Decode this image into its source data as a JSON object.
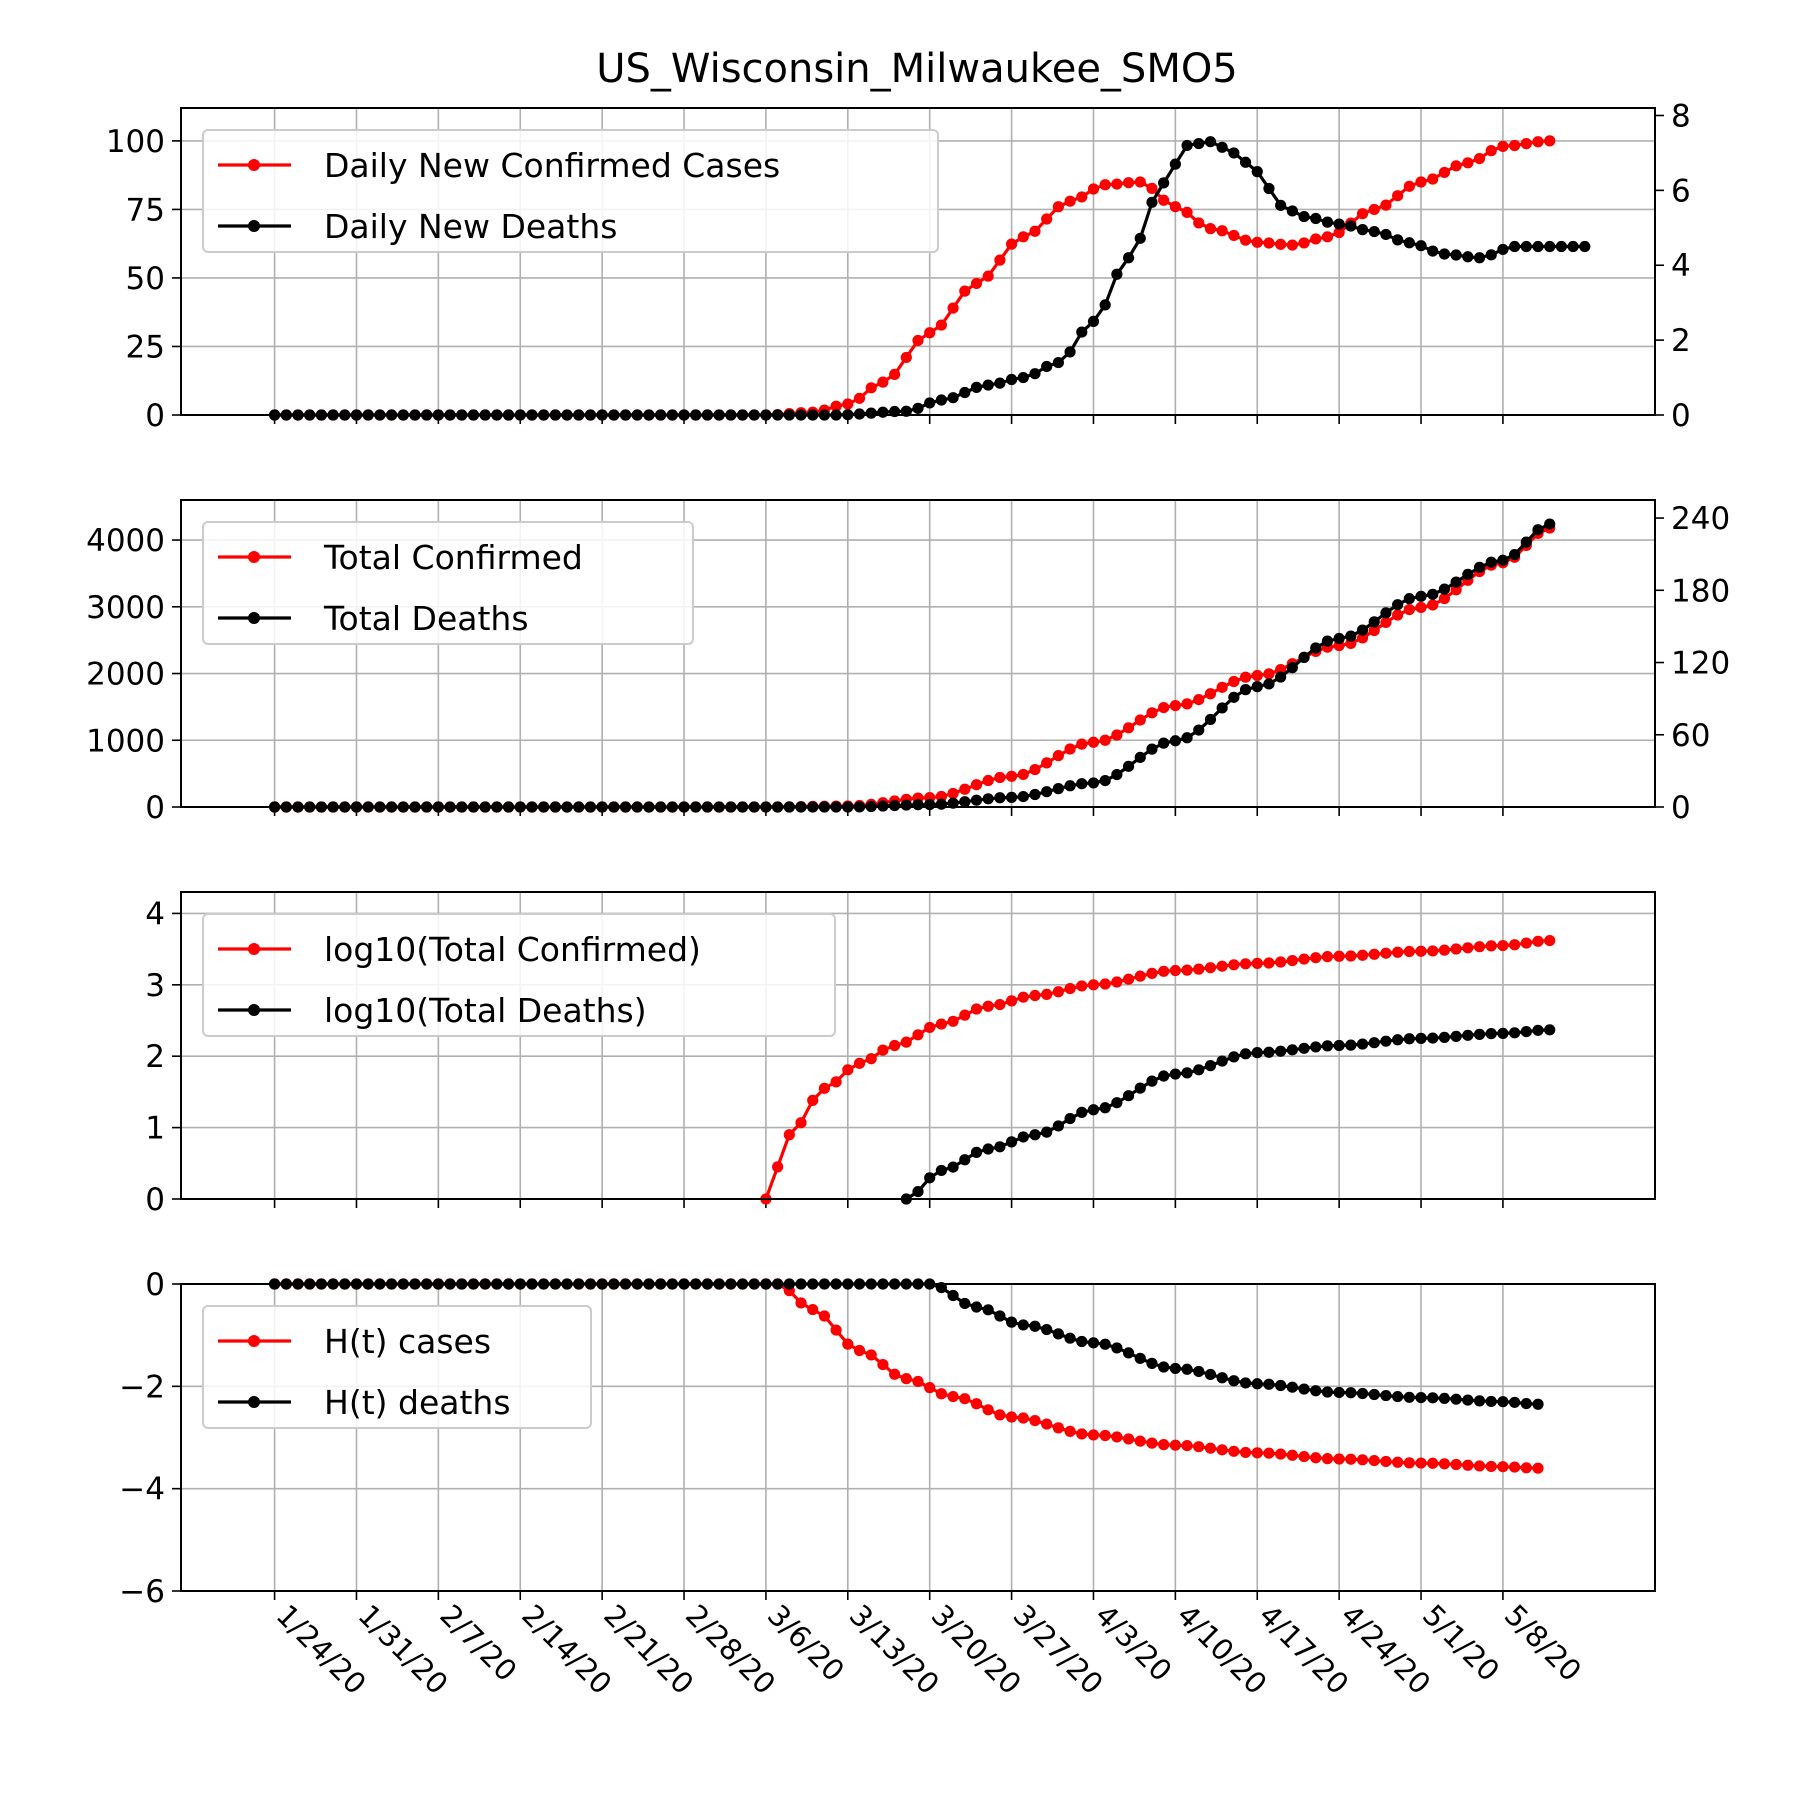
{
  "figure": {
    "title": "US_Wisconsin_Milwaukee_SMO5"
  },
  "colors": {
    "cases": "#ff0000",
    "deaths": "#000000",
    "grid": "#b0b0b0",
    "legend_border": "#cccccc"
  },
  "date_ticks": [
    "1/24/20",
    "1/31/20",
    "2/7/20",
    "2/14/20",
    "2/21/20",
    "2/28/20",
    "3/6/20",
    "3/13/20",
    "3/20/20",
    "3/27/20",
    "4/3/20",
    "4/10/20",
    "4/17/20",
    "4/24/20",
    "5/1/20",
    "5/8/20"
  ],
  "chart_data": [
    {
      "type": "line",
      "title": "US_Wisconsin_Milwaukee_SMO5",
      "x_start": "1/24/20",
      "x_end": "5/12/20",
      "xlim": [
        "1/16/20",
        "5/21/20"
      ],
      "left_axis": {
        "ylim": [
          0,
          112
        ],
        "ticks": [
          "0",
          "25",
          "50",
          "75",
          "100"
        ]
      },
      "right_axis": {
        "ylim": [
          0,
          8.2
        ],
        "ticks": [
          "0",
          "2",
          "4",
          "6",
          "8"
        ]
      },
      "legend": {
        "position": "top-left"
      },
      "grid": true,
      "series": [
        {
          "name": "Daily New Confirmed Cases",
          "axis": "left",
          "knots": [
            [
              "1/24/20",
              0
            ],
            [
              "3/6/20",
              0
            ],
            [
              "3/10/20",
              1
            ],
            [
              "3/13/20",
              4
            ],
            [
              "3/16/20",
              12
            ],
            [
              "3/20/20",
              30
            ],
            [
              "3/24/20",
              48
            ],
            [
              "3/28/20",
              65
            ],
            [
              "4/1/20",
              78
            ],
            [
              "4/4/20",
              84
            ],
            [
              "4/7/20",
              85
            ],
            [
              "4/10/20",
              76
            ],
            [
              "4/13/20",
              68
            ],
            [
              "4/17/20",
              63
            ],
            [
              "4/20/20",
              62
            ],
            [
              "4/23/20",
              65
            ],
            [
              "4/27/20",
              75
            ],
            [
              "5/1/20",
              85
            ],
            [
              "5/5/20",
              92
            ],
            [
              "5/8/20",
              98
            ],
            [
              "5/12/20",
              100
            ]
          ]
        },
        {
          "name": "Daily New Deaths",
          "axis": "right",
          "knots": [
            [
              "1/24/20",
              0
            ],
            [
              "3/12/20",
              0
            ],
            [
              "3/18/20",
              0.1
            ],
            [
              "3/21/20",
              0.4
            ],
            [
              "3/25/20",
              0.8
            ],
            [
              "3/28/20",
              1
            ],
            [
              "3/31/20",
              1.4
            ],
            [
              "4/3/20",
              2.5
            ],
            [
              "4/6/20",
              4.2
            ],
            [
              "4/9/20",
              6.2
            ],
            [
              "4/11/20",
              7.2
            ],
            [
              "4/13/20",
              7.3
            ],
            [
              "4/15/20",
              7
            ],
            [
              "4/17/20",
              6.5
            ],
            [
              "4/19/20",
              5.6
            ],
            [
              "4/21/20",
              5.3
            ],
            [
              "4/24/20",
              5.1
            ],
            [
              "4/27/20",
              4.9
            ],
            [
              "4/30/20",
              4.6
            ],
            [
              "5/3/20",
              4.3
            ],
            [
              "5/6/20",
              4.2
            ],
            [
              "5/9/20",
              4.5
            ],
            [
              "5/12/20",
              4.5
            ],
            [
              "5/15/20",
              4.5
            ]
          ]
        }
      ]
    },
    {
      "type": "line",
      "x_start": "1/24/20",
      "x_end": "5/12/20",
      "xlim": [
        "1/16/20",
        "5/21/20"
      ],
      "left_axis": {
        "ylim": [
          0,
          4600
        ],
        "ticks": [
          "0",
          "1000",
          "2000",
          "3000",
          "4000"
        ]
      },
      "right_axis": {
        "ylim": [
          0,
          255
        ],
        "ticks": [
          "0",
          "60",
          "120",
          "180",
          "240"
        ]
      },
      "legend": {
        "position": "top-left"
      },
      "grid": true,
      "series": [
        {
          "name": "Total Confirmed",
          "axis": "left",
          "knots": [
            [
              "1/24/20",
              0
            ],
            [
              "3/6/20",
              0
            ],
            [
              "3/13/20",
              15
            ],
            [
              "3/20/20",
              140
            ],
            [
              "3/27/20",
              460
            ],
            [
              "4/3/20",
              970
            ],
            [
              "4/10/20",
              1520
            ],
            [
              "4/17/20",
              1970
            ],
            [
              "4/24/20",
              2420
            ],
            [
              "5/1/20",
              2990
            ],
            [
              "5/8/20",
              3660
            ],
            [
              "5/12/20",
              4180
            ]
          ]
        },
        {
          "name": "Total Deaths",
          "axis": "right",
          "knots": [
            [
              "1/24/20",
              0
            ],
            [
              "3/13/20",
              0
            ],
            [
              "3/20/20",
              2
            ],
            [
              "3/27/20",
              8
            ],
            [
              "4/3/20",
              20
            ],
            [
              "4/10/20",
              55
            ],
            [
              "4/17/20",
              100
            ],
            [
              "4/24/20",
              140
            ],
            [
              "5/1/20",
              175
            ],
            [
              "5/8/20",
              205
            ],
            [
              "5/12/20",
              235
            ]
          ]
        }
      ]
    },
    {
      "type": "line",
      "x_start": "1/24/20",
      "x_end": "5/12/20",
      "xlim": [
        "1/16/20",
        "5/21/20"
      ],
      "left_axis": {
        "ylim": [
          0,
          4.3
        ],
        "ticks": [
          "0",
          "1",
          "2",
          "3",
          "4"
        ]
      },
      "legend": {
        "position": "top-left"
      },
      "grid": true,
      "series": [
        {
          "name": "log10(Total Confirmed)",
          "axis": "left",
          "start": "3/6/20",
          "knots": [
            [
              "3/6/20",
              0
            ],
            [
              "3/8/20",
              0.9
            ],
            [
              "3/11/20",
              1.55
            ],
            [
              "3/14/20",
              1.9
            ],
            [
              "3/17/20",
              2.15
            ],
            [
              "3/21/20",
              2.45
            ],
            [
              "3/25/20",
              2.7
            ],
            [
              "3/29/20",
              2.85
            ],
            [
              "4/3/20",
              3.0
            ],
            [
              "4/10/20",
              3.2
            ],
            [
              "4/17/20",
              3.3
            ],
            [
              "4/24/20",
              3.4
            ],
            [
              "5/1/20",
              3.47
            ],
            [
              "5/8/20",
              3.55
            ],
            [
              "5/12/20",
              3.62
            ]
          ]
        },
        {
          "name": "log10(Total Deaths)",
          "axis": "left",
          "start": "3/18/20",
          "knots": [
            [
              "3/18/20",
              0
            ],
            [
              "3/21/20",
              0.4
            ],
            [
              "3/25/20",
              0.7
            ],
            [
              "3/29/20",
              0.9
            ],
            [
              "4/3/20",
              1.25
            ],
            [
              "4/10/20",
              1.75
            ],
            [
              "4/17/20",
              2.05
            ],
            [
              "4/24/20",
              2.15
            ],
            [
              "5/1/20",
              2.25
            ],
            [
              "5/8/20",
              2.32
            ],
            [
              "5/12/20",
              2.37
            ]
          ]
        }
      ]
    },
    {
      "type": "line",
      "x_start": "1/24/20",
      "x_end": "5/12/20",
      "xlim": [
        "1/16/20",
        "5/21/20"
      ],
      "left_axis": {
        "ylim": [
          -6,
          0
        ],
        "ticks": [
          "−6",
          "−4",
          "−2",
          "0"
        ]
      },
      "legend": {
        "position": "top-left"
      },
      "grid": true,
      "series": [
        {
          "name": "H(t) cases",
          "axis": "left",
          "knots": [
            [
              "1/24/20",
              0
            ],
            [
              "3/7/20",
              0
            ],
            [
              "3/10/20",
              -0.5
            ],
            [
              "3/14/20",
              -1.3
            ],
            [
              "3/18/20",
              -1.85
            ],
            [
              "3/22/20",
              -2.2
            ],
            [
              "3/27/20",
              -2.6
            ],
            [
              "4/3/20",
              -2.95
            ],
            [
              "4/10/20",
              -3.15
            ],
            [
              "4/17/20",
              -3.3
            ],
            [
              "4/24/20",
              -3.42
            ],
            [
              "5/1/20",
              -3.5
            ],
            [
              "5/8/20",
              -3.57
            ],
            [
              "5/11/20",
              -3.6
            ]
          ]
        },
        {
          "name": "H(t) deaths",
          "axis": "left",
          "knots": [
            [
              "1/24/20",
              0
            ],
            [
              "3/9/20",
              0
            ],
            [
              "3/20/20",
              0
            ],
            [
              "3/24/20",
              -0.45
            ],
            [
              "3/28/20",
              -0.8
            ],
            [
              "4/3/20",
              -1.15
            ],
            [
              "4/10/20",
              -1.65
            ],
            [
              "4/17/20",
              -1.95
            ],
            [
              "4/24/20",
              -2.12
            ],
            [
              "5/1/20",
              -2.22
            ],
            [
              "5/8/20",
              -2.3
            ],
            [
              "5/11/20",
              -2.35
            ]
          ]
        }
      ]
    }
  ]
}
